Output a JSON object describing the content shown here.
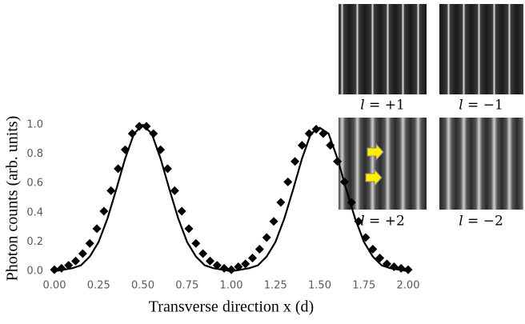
{
  "chart_data": {
    "type": "line",
    "xlabel": "Transverse direction x (d)",
    "ylabel": "Photon counts (arb. units)",
    "xlim": [
      0,
      2
    ],
    "ylim": [
      0,
      1
    ],
    "xticks": [
      {
        "value": 0,
        "label": "0.00"
      },
      {
        "value": 0.25,
        "label": "0.25"
      },
      {
        "value": 0.5,
        "label": "0.50"
      },
      {
        "value": 0.75,
        "label": "0.75"
      },
      {
        "value": 1,
        "label": "1.00"
      },
      {
        "value": 1.25,
        "label": "1.25"
      },
      {
        "value": 1.5,
        "label": "1.50"
      },
      {
        "value": 1.75,
        "label": "1.75"
      },
      {
        "value": 2,
        "label": "2.00"
      }
    ],
    "yticks": [
      {
        "value": 0,
        "label": "0.0"
      },
      0.2,
      0.4,
      0.6,
      0.8,
      {
        "value": 1,
        "label": "1.0"
      }
    ],
    "series": [
      {
        "type": "line",
        "color": "#000000",
        "x": [
          0,
          0.05,
          0.1,
          0.15,
          0.2,
          0.25,
          0.3,
          0.35,
          0.4,
          0.45,
          0.5,
          0.55,
          0.6,
          0.65,
          0.7,
          0.75,
          0.8,
          0.85,
          0.9,
          0.95,
          1,
          1.05,
          1.1,
          1.15,
          1.2,
          1.25,
          1.3,
          1.35,
          1.4,
          1.45,
          1.5,
          1.55,
          1.6,
          1.65,
          1.7,
          1.75,
          1.8,
          1.85,
          1.9,
          1.95,
          2
        ],
        "values": [
          0,
          0.01,
          0.02,
          0.04,
          0.1,
          0.2,
          0.36,
          0.56,
          0.77,
          0.94,
          1,
          0.94,
          0.77,
          0.56,
          0.36,
          0.2,
          0.1,
          0.04,
          0.02,
          0.01,
          0,
          0.01,
          0.02,
          0.04,
          0.1,
          0.2,
          0.36,
          0.56,
          0.77,
          0.94,
          0.98,
          0.94,
          0.77,
          0.56,
          0.36,
          0.2,
          0.1,
          0.04,
          0.02,
          0.01,
          0
        ]
      },
      {
        "type": "scatter",
        "color": "#000000",
        "x": [
          0,
          0.04,
          0.08,
          0.12,
          0.16,
          0.2,
          0.24,
          0.28,
          0.32,
          0.36,
          0.4,
          0.44,
          0.48,
          0.52,
          0.56,
          0.6,
          0.64,
          0.68,
          0.72,
          0.76,
          0.8,
          0.84,
          0.88,
          0.92,
          0.96,
          1,
          1.04,
          1.08,
          1.12,
          1.16,
          1.2,
          1.24,
          1.28,
          1.32,
          1.36,
          1.4,
          1.44,
          1.48,
          1.52,
          1.56,
          1.6,
          1.64,
          1.68,
          1.72,
          1.76,
          1.8,
          1.84,
          1.88,
          1.92,
          1.96,
          2
        ],
        "values": [
          0.01,
          0.02,
          0.04,
          0.07,
          0.12,
          0.19,
          0.29,
          0.41,
          0.55,
          0.7,
          0.83,
          0.94,
          0.99,
          0.99,
          0.94,
          0.83,
          0.7,
          0.55,
          0.41,
          0.29,
          0.19,
          0.12,
          0.07,
          0.04,
          0.02,
          0.01,
          0.03,
          0.05,
          0.09,
          0.15,
          0.23,
          0.34,
          0.47,
          0.61,
          0.75,
          0.86,
          0.94,
          0.97,
          0.94,
          0.86,
          0.75,
          0.61,
          0.47,
          0.34,
          0.23,
          0.15,
          0.09,
          0.05,
          0.03,
          0.02,
          0.01
        ]
      }
    ]
  },
  "insets": [
    {
      "label": "𝑙 = +1"
    },
    {
      "label": "𝑙 = −1"
    },
    {
      "label": "𝑙 = +2"
    },
    {
      "label": "𝑙 = −2"
    }
  ]
}
